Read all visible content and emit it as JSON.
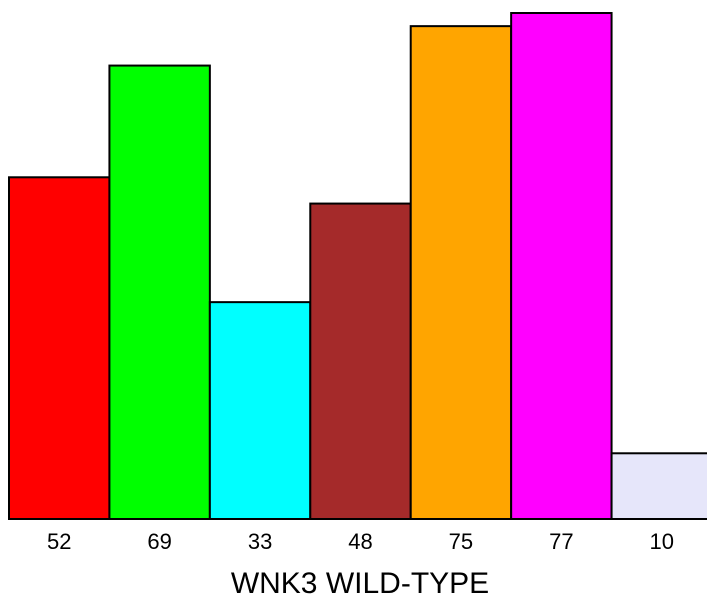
{
  "chart_data": {
    "type": "bar",
    "categories": [
      "52",
      "69",
      "33",
      "48",
      "75",
      "77",
      "10"
    ],
    "values": [
      52,
      69,
      33,
      48,
      75,
      77,
      10
    ],
    "colors": [
      "#ff0000",
      "#00ff00",
      "#00ffff",
      "#a52a2a",
      "#ffa500",
      "#ff00ff",
      "#e6e6fa"
    ],
    "title": "",
    "xlabel": "WNK3 WILD-TYPE",
    "ylabel": "",
    "ylim": [
      0,
      77
    ],
    "grid": false,
    "legend": "none"
  }
}
